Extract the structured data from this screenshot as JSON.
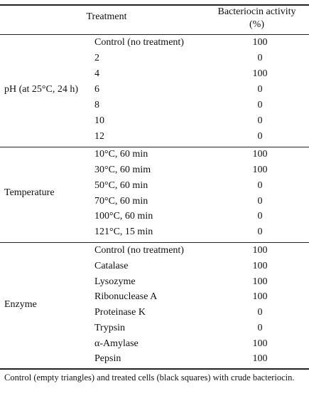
{
  "table": {
    "header": {
      "treatment": "Treatment",
      "activity_line1": "Bacteriocin activity",
      "activity_line2": "(%)"
    },
    "groups": [
      {
        "label": "pH (at 25°C, 24 h)",
        "rows": [
          {
            "treatment": "Control (no treatment)",
            "activity": "100"
          },
          {
            "treatment": "2",
            "activity": "0"
          },
          {
            "treatment": "4",
            "activity": "100"
          },
          {
            "treatment": "6",
            "activity": "0"
          },
          {
            "treatment": "8",
            "activity": "0"
          },
          {
            "treatment": "10",
            "activity": "0"
          },
          {
            "treatment": "12",
            "activity": "0"
          }
        ]
      },
      {
        "label": "Temperature",
        "rows": [
          {
            "treatment": "10°C, 60 min",
            "activity": "100"
          },
          {
            "treatment": "30°C, 60 mim",
            "activity": "100"
          },
          {
            "treatment": "50°C, 60 min",
            "activity": "0"
          },
          {
            "treatment": "70°C, 60 min",
            "activity": "0"
          },
          {
            "treatment": "100°C, 60 min",
            "activity": "0"
          },
          {
            "treatment": "121°C, 15 min",
            "activity": "0"
          }
        ]
      },
      {
        "label": "Enzyme",
        "rows": [
          {
            "treatment": "Control (no treatment)",
            "activity": "100"
          },
          {
            "treatment": "Catalase",
            "activity": "100"
          },
          {
            "treatment": "Lysozyme",
            "activity": "100"
          },
          {
            "treatment": "Ribonuclease A",
            "activity": "100"
          },
          {
            "treatment": "Proteinase K",
            "activity": "0"
          },
          {
            "treatment": "Trypsin",
            "activity": "0"
          },
          {
            "treatment": "α-Amylase",
            "activity": "100"
          },
          {
            "treatment": "Pepsin",
            "activity": "100"
          }
        ]
      }
    ]
  },
  "footnote": "Control (empty triangles) and treated cells (black squares) with crude bacteriocin."
}
